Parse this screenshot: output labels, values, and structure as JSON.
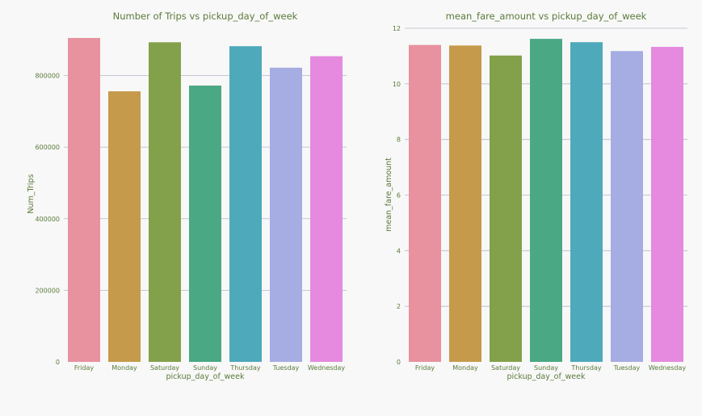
{
  "chart_data": [
    {
      "type": "bar",
      "title": "Number of Trips vs pickup_day_of_week",
      "xlabel": "pickup_day_of_week",
      "ylabel": "Num_Trips",
      "categories": [
        "Friday",
        "Monday",
        "Saturday",
        "Sunday",
        "Thursday",
        "Tuesday",
        "Wednesday"
      ],
      "values": [
        905000,
        756000,
        893000,
        772000,
        882000,
        822000,
        854000
      ],
      "yticks": [
        0,
        200000,
        400000,
        600000,
        800000
      ],
      "ytick_labels": [
        "0",
        "200000",
        "400000",
        "600000",
        "800000"
      ],
      "ylim": [
        0,
        905000
      ],
      "grid": true
    },
    {
      "type": "bar",
      "title": "mean_fare_amount vs pickup_day_of_week",
      "xlabel": "pickup_day_of_week",
      "ylabel": "mean_fare_amount",
      "categories": [
        "Friday",
        "Monday",
        "Saturday",
        "Sunday",
        "Thursday",
        "Tuesday",
        "Wednesday"
      ],
      "values": [
        11.4,
        11.38,
        11.02,
        11.62,
        11.5,
        11.18,
        11.33
      ],
      "yticks": [
        0,
        2,
        4,
        6,
        8,
        10,
        12
      ],
      "ytick_labels": [
        "0",
        "2",
        "4",
        "6",
        "8",
        "10",
        "12"
      ],
      "ylim": [
        0,
        12
      ],
      "grid": true
    }
  ],
  "colors": {
    "bars": [
      "#e8929f",
      "#c59a4b",
      "#83a14a",
      "#4aa885",
      "#4ea9bb",
      "#a5ade3",
      "#e58ade"
    ],
    "text": "#5a7a3a",
    "grid": "#b8b8c8",
    "background": "#f8f8f8"
  }
}
